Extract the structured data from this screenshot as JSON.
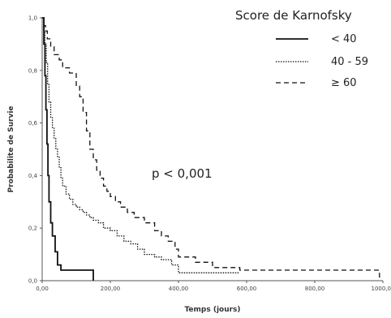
{
  "chart_data": {
    "type": "line",
    "step": true,
    "xlabel": "Temps (jours)",
    "ylabel": "Probabilite de Survie",
    "xlim": [
      0,
      1000
    ],
    "ylim": [
      0,
      1
    ],
    "x_ticks": [
      0,
      200,
      400,
      600,
      800,
      1000
    ],
    "x_tick_labels": [
      "0,00",
      "200,00",
      "400,00",
      "600,00",
      "800,00",
      "1000,00"
    ],
    "y_ticks": [
      0,
      0.2,
      0.4,
      0.6,
      0.8,
      1.0
    ],
    "y_tick_labels": [
      "0,0",
      "0,2",
      "0,4",
      "0,6",
      "0,8",
      "1,0"
    ],
    "grid": false,
    "legend": {
      "title": "Score de Karnofsky",
      "position": "top-right"
    },
    "annotation": "p < 0,001",
    "series": [
      {
        "name": "< 40",
        "style": "solid",
        "x": [
          0,
          5,
          8,
          11,
          14,
          17,
          20,
          25,
          30,
          38,
          45,
          55,
          80,
          150
        ],
        "y": [
          1.0,
          0.9,
          0.78,
          0.65,
          0.52,
          0.4,
          0.3,
          0.22,
          0.17,
          0.11,
          0.06,
          0.04,
          0.04,
          0.0
        ]
      },
      {
        "name": "40 - 59",
        "style": "dotted",
        "x": [
          0,
          4,
          8,
          12,
          16,
          20,
          25,
          30,
          35,
          40,
          45,
          50,
          55,
          60,
          70,
          80,
          90,
          100,
          110,
          120,
          130,
          140,
          150,
          165,
          180,
          200,
          220,
          240,
          260,
          280,
          300,
          330,
          350,
          380,
          400,
          500,
          580
        ],
        "y": [
          1.0,
          0.95,
          0.9,
          0.83,
          0.75,
          0.68,
          0.62,
          0.58,
          0.54,
          0.5,
          0.47,
          0.43,
          0.39,
          0.36,
          0.33,
          0.31,
          0.29,
          0.28,
          0.27,
          0.26,
          0.25,
          0.24,
          0.23,
          0.22,
          0.2,
          0.19,
          0.17,
          0.15,
          0.14,
          0.12,
          0.1,
          0.09,
          0.08,
          0.06,
          0.03,
          0.03,
          0.03
        ]
      },
      {
        "name": "≥ 60",
        "style": "dashed",
        "x": [
          0,
          5,
          10,
          15,
          25,
          35,
          50,
          60,
          80,
          100,
          110,
          120,
          130,
          140,
          150,
          160,
          170,
          180,
          190,
          200,
          215,
          230,
          250,
          270,
          300,
          330,
          350,
          370,
          390,
          400,
          450,
          500,
          580,
          700,
          800,
          990
        ],
        "y": [
          1.0,
          0.97,
          0.95,
          0.92,
          0.89,
          0.86,
          0.84,
          0.81,
          0.79,
          0.74,
          0.7,
          0.64,
          0.57,
          0.5,
          0.46,
          0.42,
          0.39,
          0.36,
          0.34,
          0.32,
          0.3,
          0.28,
          0.26,
          0.24,
          0.22,
          0.19,
          0.17,
          0.15,
          0.12,
          0.09,
          0.07,
          0.05,
          0.04,
          0.04,
          0.04,
          0.01
        ]
      }
    ]
  }
}
